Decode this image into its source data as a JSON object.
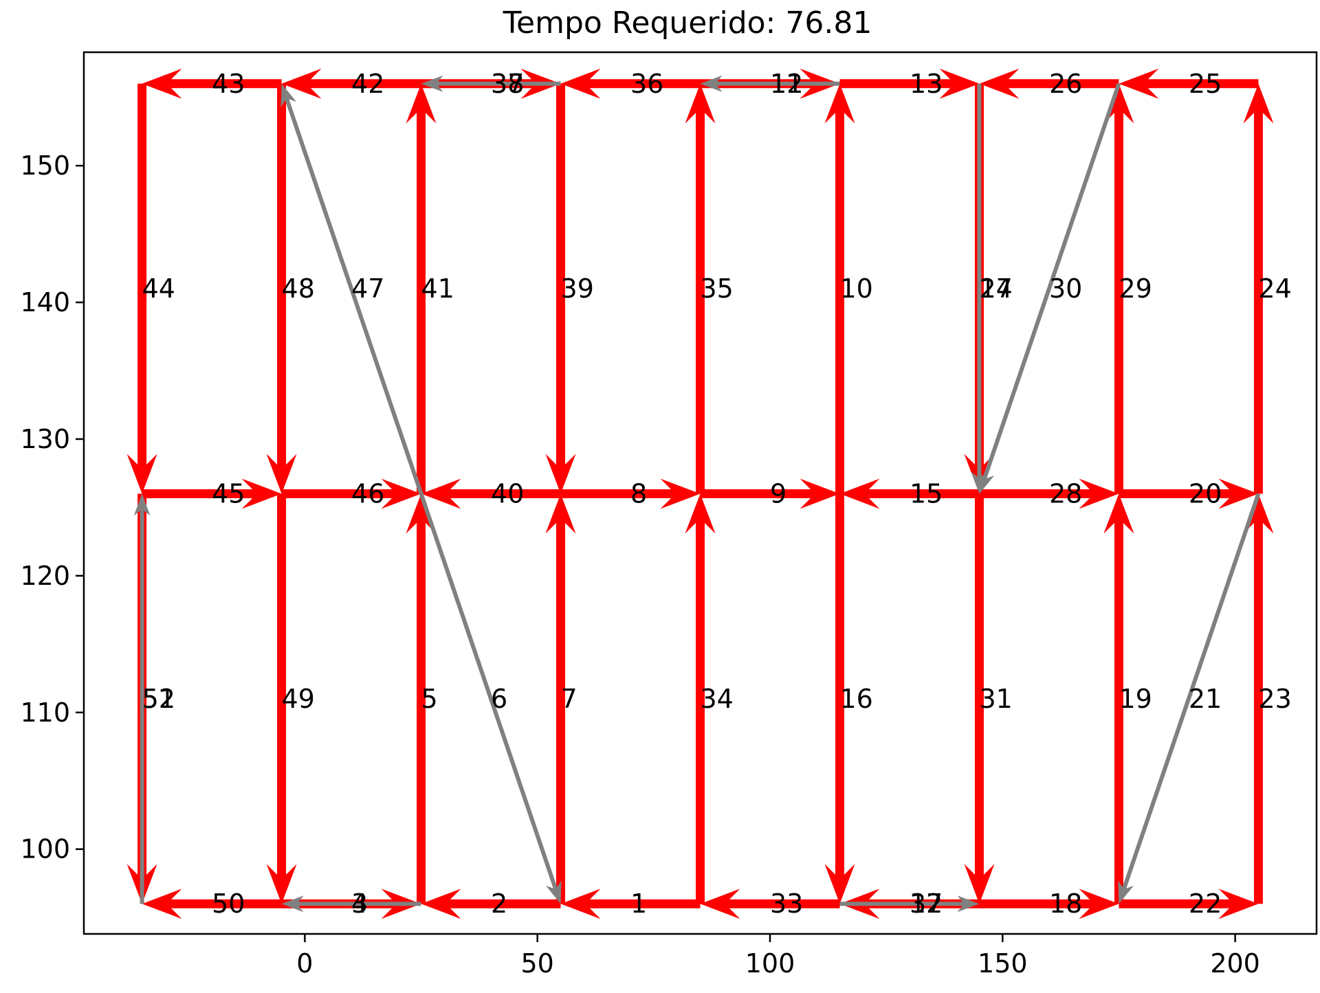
{
  "chart_data": {
    "type": "directed-graph",
    "title": "Tempo Requerido: 76.81",
    "xlabel": "",
    "ylabel": "",
    "xlim": [
      -47.5,
      217.5
    ],
    "ylim": [
      93.8,
      158.3
    ],
    "x_ticks": [
      0,
      50,
      100,
      150,
      200
    ],
    "y_ticks": [
      100,
      110,
      120,
      130,
      140,
      150
    ],
    "grid": false,
    "colors": {
      "required": "#ff0000",
      "deadhead": "#808080"
    },
    "edges": [
      {
        "label": "1",
        "from": [
          85,
          96
        ],
        "to": [
          55,
          96
        ],
        "type": "required"
      },
      {
        "label": "2",
        "from": [
          55,
          96
        ],
        "to": [
          25,
          96
        ],
        "type": "required"
      },
      {
        "label": "3",
        "from": [
          25,
          96
        ],
        "to": [
          -5,
          96
        ],
        "type": "deadhead"
      },
      {
        "label": "4",
        "from": [
          -5,
          96
        ],
        "to": [
          25,
          96
        ],
        "type": "required"
      },
      {
        "label": "5",
        "from": [
          25,
          96
        ],
        "to": [
          25,
          126
        ],
        "type": "required"
      },
      {
        "label": "6",
        "from": [
          25,
          126
        ],
        "to": [
          55,
          96
        ],
        "type": "deadhead"
      },
      {
        "label": "7",
        "from": [
          55,
          96
        ],
        "to": [
          55,
          126
        ],
        "type": "required"
      },
      {
        "label": "8",
        "from": [
          55,
          126
        ],
        "to": [
          85,
          126
        ],
        "type": "required"
      },
      {
        "label": "9",
        "from": [
          85,
          126
        ],
        "to": [
          115,
          126
        ],
        "type": "required"
      },
      {
        "label": "10",
        "from": [
          115,
          126
        ],
        "to": [
          115,
          156
        ],
        "type": "required"
      },
      {
        "label": "11",
        "from": [
          115,
          156
        ],
        "to": [
          85,
          156
        ],
        "type": "deadhead"
      },
      {
        "label": "12",
        "from": [
          85,
          156
        ],
        "to": [
          115,
          156
        ],
        "type": "required"
      },
      {
        "label": "13",
        "from": [
          115,
          156
        ],
        "to": [
          145,
          156
        ],
        "type": "required"
      },
      {
        "label": "14",
        "from": [
          145,
          156
        ],
        "to": [
          145,
          126
        ],
        "type": "deadhead"
      },
      {
        "label": "15",
        "from": [
          145,
          126
        ],
        "to": [
          115,
          126
        ],
        "type": "required"
      },
      {
        "label": "16",
        "from": [
          115,
          126
        ],
        "to": [
          115,
          96
        ],
        "type": "required"
      },
      {
        "label": "17",
        "from": [
          115,
          96
        ],
        "to": [
          145,
          96
        ],
        "type": "deadhead"
      },
      {
        "label": "18",
        "from": [
          145,
          96
        ],
        "to": [
          175,
          96
        ],
        "type": "required"
      },
      {
        "label": "19",
        "from": [
          175,
          96
        ],
        "to": [
          175,
          126
        ],
        "type": "required"
      },
      {
        "label": "20",
        "from": [
          175,
          126
        ],
        "to": [
          205,
          126
        ],
        "type": "required"
      },
      {
        "label": "21",
        "from": [
          205,
          126
        ],
        "to": [
          175,
          96
        ],
        "type": "deadhead"
      },
      {
        "label": "22",
        "from": [
          175,
          96
        ],
        "to": [
          205,
          96
        ],
        "type": "required"
      },
      {
        "label": "23",
        "from": [
          205,
          96
        ],
        "to": [
          205,
          126
        ],
        "type": "required"
      },
      {
        "label": "24",
        "from": [
          205,
          126
        ],
        "to": [
          205,
          156
        ],
        "type": "required"
      },
      {
        "label": "25",
        "from": [
          205,
          156
        ],
        "to": [
          175,
          156
        ],
        "type": "required"
      },
      {
        "label": "26",
        "from": [
          175,
          156
        ],
        "to": [
          145,
          156
        ],
        "type": "required"
      },
      {
        "label": "27",
        "from": [
          145,
          156
        ],
        "to": [
          145,
          126
        ],
        "type": "required"
      },
      {
        "label": "28",
        "from": [
          145,
          126
        ],
        "to": [
          175,
          126
        ],
        "type": "required"
      },
      {
        "label": "29",
        "from": [
          175,
          126
        ],
        "to": [
          175,
          156
        ],
        "type": "required"
      },
      {
        "label": "30",
        "from": [
          175,
          156
        ],
        "to": [
          145,
          126
        ],
        "type": "deadhead"
      },
      {
        "label": "31",
        "from": [
          145,
          126
        ],
        "to": [
          145,
          96
        ],
        "type": "required"
      },
      {
        "label": "32",
        "from": [
          145,
          96
        ],
        "to": [
          115,
          96
        ],
        "type": "required"
      },
      {
        "label": "33",
        "from": [
          115,
          96
        ],
        "to": [
          85,
          96
        ],
        "type": "required"
      },
      {
        "label": "34",
        "from": [
          85,
          96
        ],
        "to": [
          85,
          126
        ],
        "type": "required"
      },
      {
        "label": "35",
        "from": [
          85,
          126
        ],
        "to": [
          85,
          156
        ],
        "type": "required"
      },
      {
        "label": "36",
        "from": [
          85,
          156
        ],
        "to": [
          55,
          156
        ],
        "type": "required"
      },
      {
        "label": "37",
        "from": [
          55,
          156
        ],
        "to": [
          25,
          156
        ],
        "type": "deadhead"
      },
      {
        "label": "38",
        "from": [
          25,
          156
        ],
        "to": [
          55,
          156
        ],
        "type": "required"
      },
      {
        "label": "39",
        "from": [
          55,
          156
        ],
        "to": [
          55,
          126
        ],
        "type": "required"
      },
      {
        "label": "40",
        "from": [
          55,
          126
        ],
        "to": [
          25,
          126
        ],
        "type": "required"
      },
      {
        "label": "41",
        "from": [
          25,
          126
        ],
        "to": [
          25,
          156
        ],
        "type": "required"
      },
      {
        "label": "42",
        "from": [
          25,
          156
        ],
        "to": [
          -5,
          156
        ],
        "type": "required"
      },
      {
        "label": "43",
        "from": [
          -5,
          156
        ],
        "to": [
          -35,
          156
        ],
        "type": "required"
      },
      {
        "label": "44",
        "from": [
          -35,
          156
        ],
        "to": [
          -35,
          126
        ],
        "type": "required"
      },
      {
        "label": "45",
        "from": [
          -35,
          126
        ],
        "to": [
          -5,
          126
        ],
        "type": "required"
      },
      {
        "label": "46",
        "from": [
          -5,
          126
        ],
        "to": [
          25,
          126
        ],
        "type": "required"
      },
      {
        "label": "47",
        "from": [
          25,
          126
        ],
        "to": [
          -5,
          156
        ],
        "type": "deadhead"
      },
      {
        "label": "48",
        "from": [
          -5,
          156
        ],
        "to": [
          -5,
          126
        ],
        "type": "required"
      },
      {
        "label": "49",
        "from": [
          -5,
          126
        ],
        "to": [
          -5,
          96
        ],
        "type": "required"
      },
      {
        "label": "50",
        "from": [
          -5,
          96
        ],
        "to": [
          -35,
          96
        ],
        "type": "required"
      },
      {
        "label": "51",
        "from": [
          -35,
          96
        ],
        "to": [
          -35,
          126
        ],
        "type": "deadhead"
      },
      {
        "label": "52",
        "from": [
          -35,
          126
        ],
        "to": [
          -35,
          96
        ],
        "type": "required"
      }
    ]
  }
}
